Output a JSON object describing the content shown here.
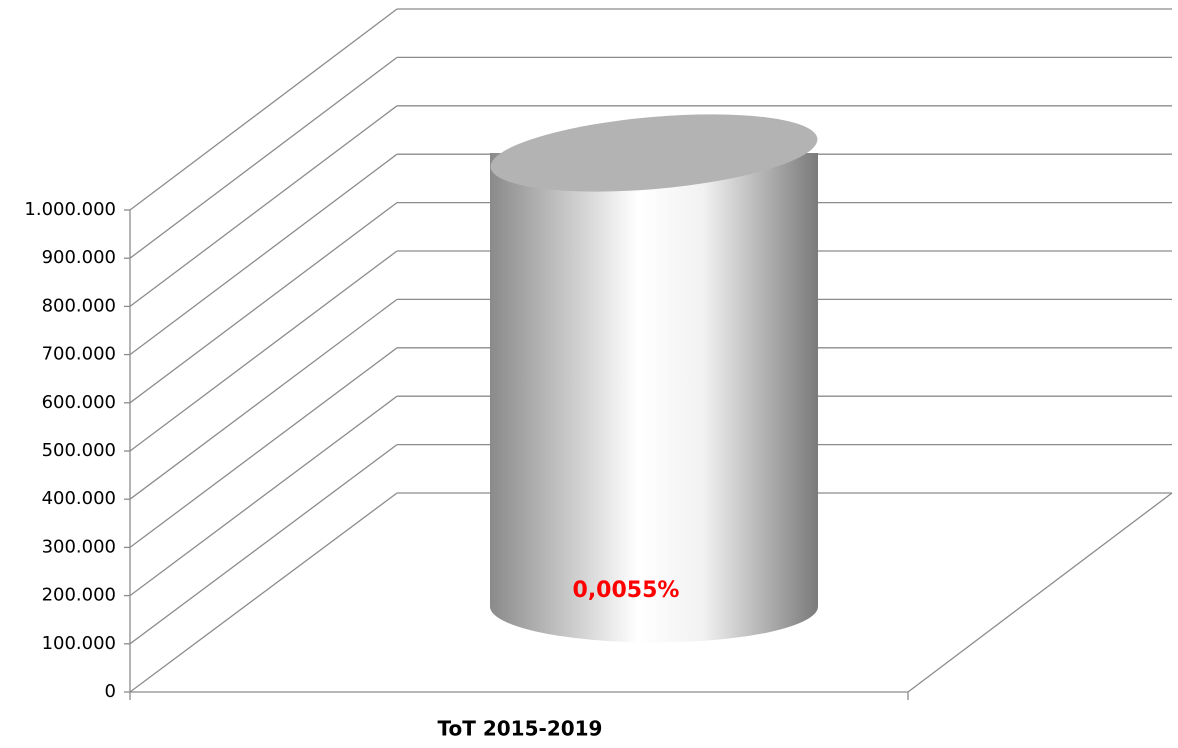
{
  "chart_data": {
    "type": "cylinder",
    "categories": [
      "ToT 2015-2019"
    ],
    "values": [
      910000
    ],
    "color": "#b3b3b3",
    "ylim": [
      0,
      1000000
    ],
    "yticks": [
      0,
      {
        "value": 100000,
        "label": "100.000"
      },
      {
        "value": 200000,
        "label": "200.000"
      },
      {
        "value": 300000,
        "label": "300.000"
      },
      {
        "value": 400000,
        "label": "400.000"
      },
      {
        "value": 500000,
        "label": "500.000"
      },
      {
        "value": 600000,
        "label": "600.000"
      },
      {
        "value": 700000,
        "label": "700.000"
      },
      {
        "value": 800000,
        "label": "800.000"
      },
      {
        "value": 900000,
        "label": "900.000"
      },
      {
        "value": 1000000,
        "label": "1.000.000"
      }
    ],
    "annotation": "0,0055%",
    "grid": true
  }
}
